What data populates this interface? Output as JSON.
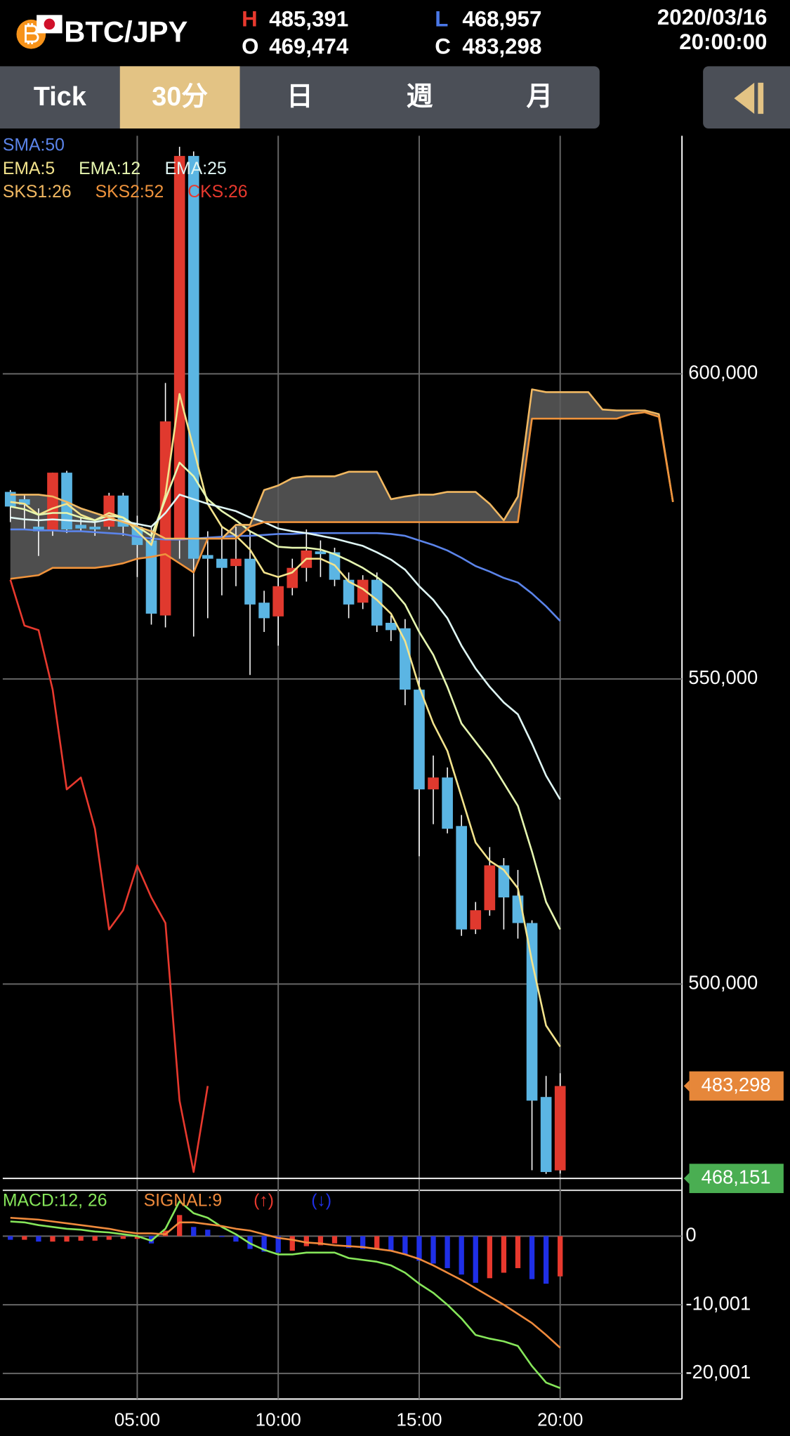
{
  "header": {
    "symbol": "BTC/JPY",
    "high_label": "H",
    "high": "485,391",
    "open_label": "O",
    "open": "469,474",
    "low_label": "L",
    "low": "468,957",
    "close_label": "C",
    "close": "483,298",
    "date": "2020/03/16",
    "time": "20:00:00"
  },
  "tabs": [
    "Tick",
    "30分",
    "日",
    "週",
    "月"
  ],
  "selected_tab": 1,
  "chart_data": [
    {
      "type": "candlestick",
      "x": [
        0.5,
        1,
        1.5,
        2,
        2.5,
        3,
        3.5,
        4,
        4.5,
        5,
        5.5,
        6,
        6.5,
        7,
        7.5,
        8,
        8.5,
        9,
        9.5,
        10,
        10.5,
        11,
        11.5,
        12,
        12.5,
        13,
        13.5,
        14,
        14.5,
        15,
        15.5,
        16,
        16.5,
        17,
        17.5,
        18,
        18.5,
        19,
        19.5,
        20,
        20.5,
        21,
        21.5,
        22,
        22.5,
        23,
        23.5,
        24
      ],
      "open": [
        580650,
        579450,
        574950,
        574200,
        583800,
        575250,
        574950,
        574950,
        580050,
        574950,
        572700,
        560400,
        572700,
        635700,
        570300,
        569700,
        568500,
        569700,
        562500,
        560250,
        564900,
        568200,
        570900,
        570750,
        566250,
        562500,
        566250,
        559200,
        558300,
        548250,
        531900,
        533850,
        525900,
        508950,
        512100,
        519450,
        514500,
        510000,
        481500,
        469474,
        null,
        null,
        null,
        null,
        null,
        null,
        null,
        null
      ],
      "high": [
        580950,
        580200,
        577950,
        583800,
        584100,
        576450,
        576000,
        580500,
        580500,
        576750,
        574950,
        598500,
        637200,
        636450,
        574200,
        574950,
        574950,
        574200,
        564450,
        566700,
        569700,
        574500,
        572700,
        571500,
        567450,
        567000,
        567450,
        560400,
        559800,
        550200,
        537450,
        535500,
        527700,
        513450,
        522450,
        520650,
        518700,
        510450,
        484950,
        485391,
        null,
        null,
        null,
        null,
        null,
        null,
        null,
        null
      ],
      "low": [
        575700,
        574500,
        570150,
        573450,
        573900,
        574200,
        573450,
        574500,
        573450,
        566700,
        558900,
        558450,
        569700,
        556950,
        559950,
        563700,
        565200,
        550650,
        557700,
        555450,
        563700,
        565950,
        566700,
        565200,
        559950,
        561450,
        557700,
        556200,
        545700,
        520950,
        526200,
        524700,
        507900,
        508200,
        511200,
        508950,
        507450,
        469500,
        468900,
        468957,
        null,
        null,
        null,
        null,
        null,
        null,
        null,
        null
      ],
      "close": [
        578250,
        578550,
        574200,
        583800,
        574500,
        574650,
        574500,
        580050,
        574950,
        571950,
        560700,
        592200,
        635700,
        569700,
        569700,
        568200,
        569700,
        562200,
        559950,
        565200,
        568200,
        571050,
        570450,
        566250,
        562200,
        566250,
        558750,
        558000,
        548250,
        531900,
        533850,
        525450,
        508950,
        512100,
        519450,
        514200,
        510000,
        480900,
        469200,
        483298,
        null,
        null,
        null,
        null,
        null,
        null,
        null,
        null
      ],
      "up_color": "#e0392e",
      "down_color": "#5bb5e3",
      "series": [
        {
          "name": "SMA:50",
          "color": "#5b84ea",
          "values": [
            574500,
            574500,
            574350,
            574350,
            574200,
            574200,
            574050,
            573900,
            573750,
            573300,
            573000,
            572850,
            572850,
            573000,
            573150,
            573300,
            573450,
            573450,
            573600,
            573750,
            573750,
            573900,
            573900,
            573900,
            573900,
            573900,
            573900,
            573750,
            573450,
            572700,
            571950,
            571050,
            569850,
            568500,
            567600,
            566550,
            565800,
            564000,
            561900,
            559500,
            null,
            null,
            null,
            null,
            null,
            null,
            null,
            null
          ]
        },
        {
          "name": "EMA:5",
          "color": "#f3e38c",
          "values": [
            579000,
            578700,
            576900,
            577950,
            578700,
            576900,
            576000,
            577200,
            576450,
            574200,
            571950,
            580200,
            596700,
            587700,
            578700,
            574950,
            573450,
            571200,
            567450,
            566700,
            567450,
            569700,
            569700,
            568650,
            565950,
            564750,
            562950,
            560700,
            556200,
            548700,
            542700,
            538200,
            530700,
            523200,
            520200,
            518700,
            515700,
            503700,
            493200,
            489750,
            null,
            null,
            null,
            null,
            null,
            null,
            null,
            null
          ]
        },
        {
          "name": "EMA:12",
          "color": "#e6f6b0",
          "values": [
            578250,
            577800,
            576900,
            577200,
            577200,
            576450,
            576000,
            576750,
            576450,
            574950,
            573450,
            579450,
            585450,
            583200,
            579450,
            577500,
            576000,
            574200,
            573000,
            571650,
            571500,
            571500,
            571200,
            570450,
            569400,
            568200,
            566700,
            564900,
            562200,
            557700,
            553950,
            548700,
            542700,
            539700,
            536700,
            532950,
            529200,
            521700,
            513450,
            508950,
            null,
            null,
            null,
            null,
            null,
            null,
            null,
            null
          ]
        },
        {
          "name": "EMA:25",
          "color": "#dff6f4",
          "values": [
            576450,
            576150,
            576000,
            576150,
            576000,
            575850,
            575700,
            576150,
            575850,
            575400,
            574950,
            577200,
            580200,
            579450,
            578700,
            578100,
            577500,
            576450,
            575700,
            574650,
            574200,
            573900,
            573450,
            573000,
            572400,
            571800,
            570750,
            569550,
            567900,
            565200,
            562950,
            559950,
            555450,
            551700,
            548700,
            546150,
            544200,
            539400,
            534150,
            530250,
            null,
            null,
            null,
            null,
            null,
            null,
            null,
            null
          ]
        },
        {
          "name": "SKS1:26",
          "color": "#f1b862",
          "values": [
            580200,
            580200,
            580200,
            579900,
            579000,
            577950,
            577200,
            576450,
            575700,
            574950,
            574200,
            573000,
            573000,
            573000,
            573000,
            573000,
            575250,
            575250,
            580950,
            581700,
            582900,
            583200,
            583200,
            583200,
            583950,
            583950,
            583950,
            579450,
            579900,
            580200,
            580200,
            580650,
            580650,
            580650,
            578700,
            576000,
            579900,
            597450,
            597000,
            597000,
            597000,
            597000,
            594150,
            594000,
            594000,
            594000,
            593400,
            579000
          ]
        },
        {
          "name": "SKS2:52",
          "color": "#ef933c",
          "values": [
            566400,
            566700,
            567000,
            568200,
            568200,
            568200,
            568200,
            568500,
            568950,
            569700,
            570000,
            570450,
            568950,
            567450,
            573000,
            573000,
            573000,
            574950,
            575700,
            575700,
            575700,
            575700,
            575700,
            575700,
            575700,
            575700,
            575700,
            575700,
            575700,
            575700,
            575700,
            575700,
            575700,
            575700,
            575700,
            575700,
            575700,
            592650,
            592650,
            592650,
            592650,
            592650,
            592650,
            592650,
            593400,
            593700,
            592950,
            579000
          ]
        },
        {
          "name": "CKS:26",
          "color": "#e8392e",
          "values": [
            566250,
            558750,
            558000,
            548250,
            531900,
            533850,
            525450,
            508950,
            512100,
            519450,
            514200,
            510000,
            480900,
            469200,
            483298,
            null,
            null,
            null,
            null,
            null,
            null,
            null,
            null,
            null,
            null,
            null,
            null,
            null,
            null,
            null,
            null,
            null,
            null,
            null,
            null,
            null,
            null,
            null,
            null,
            null,
            null,
            null,
            null,
            null,
            null,
            null,
            null,
            null
          ]
        }
      ],
      "cloud_color": "#5c5c5c",
      "xlim": [
        0.23,
        24.32
      ],
      "xticks": [
        {
          "value": 5,
          "label": "05:00"
        },
        {
          "value": 10,
          "label": "10:00"
        },
        {
          "value": 15,
          "label": "15:00"
        },
        {
          "value": 20,
          "label": "20:00"
        }
      ],
      "ylim": [
        467700,
        639000
      ],
      "yticks": [
        {
          "value": 500000,
          "label": "500,000"
        },
        {
          "value": 550000,
          "label": "550,000"
        },
        {
          "value": 600000,
          "label": "600,000"
        }
      ],
      "grid": true,
      "price_markers": [
        {
          "value": 483298,
          "label": "483,298",
          "color": "#e6873a",
          "line": false
        },
        {
          "value": 468151,
          "label": "468,151",
          "color": "#4aae52",
          "line": true
        }
      ]
    },
    {
      "type": "macd",
      "x": [
        0.5,
        1,
        1.5,
        2,
        2.5,
        3,
        3.5,
        4,
        4.5,
        5,
        5.5,
        6,
        6.5,
        7,
        7.5,
        8,
        8.5,
        9,
        9.5,
        10,
        10.5,
        11,
        11.5,
        12,
        12.5,
        13,
        13.5,
        14,
        14.5,
        15,
        15.5,
        16,
        16.5,
        17,
        17.5,
        18,
        18.5,
        19,
        19.5,
        20
      ],
      "series": [
        {
          "name": "MACD:12, 26",
          "color": "#86e65a",
          "values": [
            2133,
            2000,
            1600,
            1333,
            1067,
            933,
            667,
            533,
            267,
            0,
            -667,
            1067,
            5067,
            3333,
            2667,
            1333,
            267,
            -1067,
            -2000,
            -2667,
            -2667,
            -2400,
            -2400,
            -2400,
            -3200,
            -3467,
            -3733,
            -4267,
            -5333,
            -6933,
            -8267,
            -10000,
            -12000,
            -14400,
            -14933,
            -15333,
            -16000,
            -18933,
            -21333,
            -22133
          ]
        },
        {
          "name": "SIGNAL:9",
          "color": "#ef8a3c",
          "values": [
            2667,
            2533,
            2400,
            2133,
            1867,
            1600,
            1333,
            1067,
            667,
            400,
            400,
            267,
            2000,
            2000,
            1733,
            1467,
            1067,
            800,
            267,
            -267,
            -533,
            -933,
            -1067,
            -1333,
            -1467,
            -1600,
            -1867,
            -2133,
            -2667,
            -3333,
            -4267,
            -5333,
            -6400,
            -7600,
            -8800,
            -10000,
            -11333,
            -12667,
            -14400,
            -16267
          ]
        }
      ],
      "histogram": {
        "values": [
          -534,
          -533,
          -800,
          -800,
          -800,
          -667,
          -666,
          -534,
          -400,
          -400,
          -1067,
          800,
          3067,
          1333,
          934,
          -134,
          -800,
          -1867,
          -2267,
          -2400,
          -2134,
          -1467,
          -1333,
          -1067,
          -1733,
          -1867,
          -1866,
          -2134,
          -2666,
          -3600,
          -4000,
          -4667,
          -5600,
          -6800,
          -6133,
          -5333,
          -4667,
          -6266,
          -6933,
          -5866
        ],
        "up_label": "(↑)",
        "up_color": "#e8392e",
        "down_label": "(↓)",
        "down_color": "#1f2fe6"
      },
      "xlim": [
        0.23,
        24.32
      ],
      "ylim": [
        -23733,
        6667
      ],
      "yticks": [
        0,
        {
          "value": -10001,
          "label": "-10,001"
        },
        {
          "value": -20001,
          "label": "-20,001"
        }
      ],
      "grid": true
    }
  ]
}
